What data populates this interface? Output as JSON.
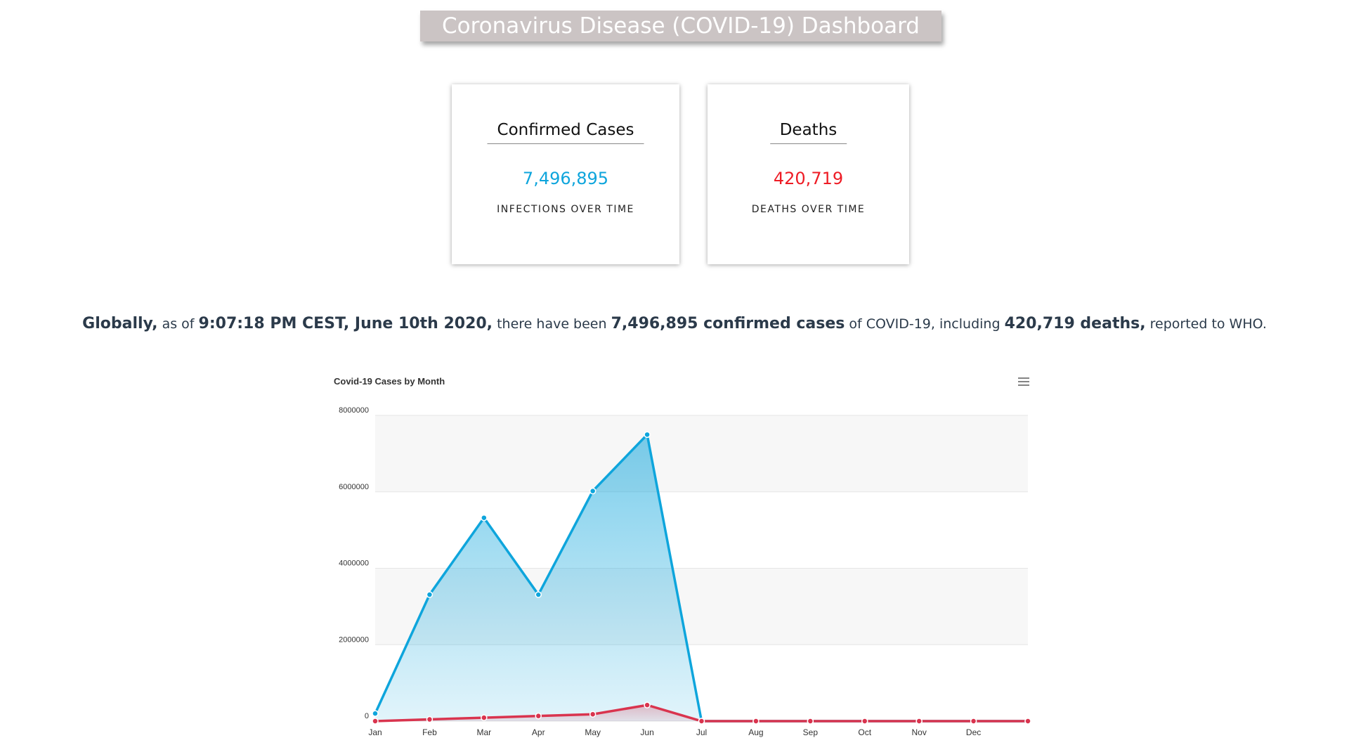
{
  "header": {
    "title": "Coronavirus Disease (COVID-19) Dashboard"
  },
  "cards": [
    {
      "title": "Confirmed Cases",
      "value": "7,496,895",
      "subtitle": "INFECTIONS OVER TIME",
      "color": "#0ea5dc"
    },
    {
      "title": "Deaths",
      "value": "420,719",
      "subtitle": "DEATHS OVER TIME",
      "color": "#ee1c25"
    }
  ],
  "summary": [
    {
      "text": "Globally,",
      "bold": true
    },
    {
      "text": "as of",
      "bold": false
    },
    {
      "text": "9:07:18 PM CEST, June 10th 2020,",
      "bold": true
    },
    {
      "text": "there have been",
      "bold": false
    },
    {
      "text": "7,496,895 confirmed cases",
      "bold": true
    },
    {
      "text": "of COVID-19, including",
      "bold": false
    },
    {
      "text": "420,719 deaths,",
      "bold": true
    },
    {
      "text": "reported to WHO.",
      "bold": false
    }
  ],
  "chart_data": {
    "type": "area",
    "title": "Covid-19 Cases by Month",
    "categories": [
      "Jan",
      "Feb",
      "Mar",
      "Apr",
      "May",
      "Jun",
      "Jul",
      "Aug",
      "Sep",
      "Oct",
      "Nov",
      "Dec",
      null
    ],
    "series": [
      {
        "color": "#0ea5dc",
        "values": [
          200000,
          3310000,
          5320000,
          3310000,
          6020000,
          7496895,
          0,
          0,
          0,
          0,
          0,
          0,
          0
        ]
      },
      {
        "color": "#d9344e",
        "values": [
          0,
          45000,
          90000,
          135000,
          180000,
          420719,
          0,
          0,
          0,
          0,
          0,
          0,
          0
        ]
      }
    ],
    "ylim": [
      0,
      8000000
    ],
    "yticks": [
      0,
      2000000,
      4000000,
      6000000,
      8000000
    ],
    "grid": true
  }
}
